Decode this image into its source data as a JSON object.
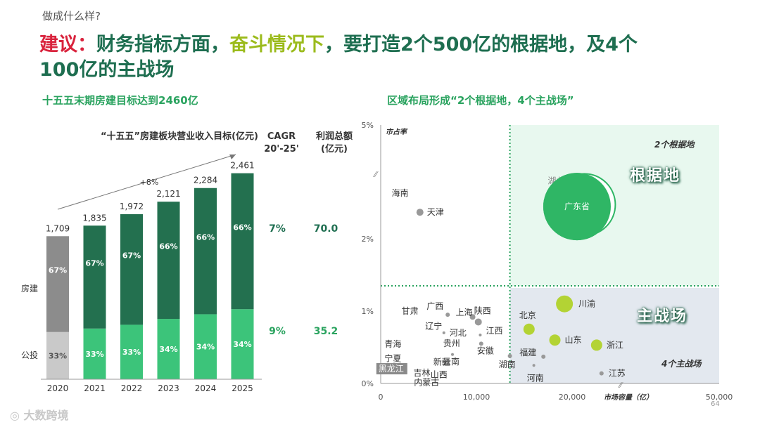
{
  "header": {
    "crumb": "做成什么样?",
    "title_part1": "建议：",
    "title_part2": "财务指标方面，",
    "title_part3": "奋斗情况下",
    "title_part4": "，要打造2个500亿的根据地，及4个",
    "title_line2": "100亿的主战场"
  },
  "left_panel": {
    "subtitle": "十五五末期房建目标达到2460亿"
  },
  "right_panel": {
    "subtitle": "区域布局形成“2个根据地，4个主战场”"
  },
  "colors": {
    "dark_green": "#1e6e50",
    "bar_dark": "#23704f",
    "bar_light": "#3cc47a",
    "gray_dark": "#8c8c8c",
    "gray_light": "#c9c9c9",
    "accent_green": "#2aa35f",
    "zone_green": "#e8f8ef",
    "zone_gray": "#e3e8ef"
  },
  "chart_data": [
    {
      "type": "bar",
      "title": "“十五五”房建板块营业收入目标(亿元)",
      "categories": [
        "2020",
        "2021",
        "2022",
        "2023",
        "2024",
        "2025"
      ],
      "totals": [
        1709,
        1835,
        1972,
        2121,
        2284,
        2461
      ],
      "total_labels": [
        "1,709",
        "1,835",
        "1,972",
        "2,121",
        "2,284",
        "2,461"
      ],
      "series": [
        {
          "name": "房建",
          "values_pct": [
            67,
            67,
            67,
            66,
            66,
            66
          ],
          "labels": [
            "67%",
            "67%",
            "67%",
            "66%",
            "66%",
            "66%"
          ]
        },
        {
          "name": "公投",
          "values_pct": [
            33,
            33,
            33,
            34,
            34,
            34
          ],
          "labels": [
            "33%",
            "33%",
            "33%",
            "34%",
            "34%",
            "34%"
          ]
        }
      ],
      "growth_label": "+8%",
      "table": {
        "headers": [
          "CAGR\n20'-25'",
          "利润总额\n(亿元)"
        ],
        "header_cagr_line1": "CAGR",
        "header_cagr_line2": "20'-25'",
        "header_profit_line1": "利润总额",
        "header_profit_line2": "(亿元)",
        "rows": [
          {
            "series": "房建",
            "cagr": "7%",
            "profit": "70.0"
          },
          {
            "series": "公投",
            "cagr": "9%",
            "profit": "35.2"
          }
        ]
      }
    },
    {
      "type": "scatter",
      "xlabel": "市场容量（亿）",
      "ylabel": "市占率",
      "xlim": [
        0,
        50000
      ],
      "ylim": [
        0,
        5
      ],
      "x_ticks": [
        0,
        10000,
        20000,
        50000
      ],
      "x_tick_labels": [
        "0",
        "10,000",
        "20,000",
        "50,000"
      ],
      "y_ticks": [
        0,
        1,
        2,
        5
      ],
      "y_tick_labels": [
        "0%",
        "1%",
        "2%",
        "5%"
      ],
      "threshold_x": 13500,
      "threshold_y": 1.35,
      "zone_labels": {
        "top": "2个根据地",
        "bottom": "4个主战场"
      },
      "badges": {
        "top": "根据地",
        "bottom": "主战场"
      },
      "points": [
        {
          "name": "广东省",
          "x": 21000,
          "y": 2.85,
          "r": 48,
          "color": "#2fb665",
          "group": "base"
        },
        {
          "name": "湖北",
          "x": 22500,
          "y": 2.9,
          "r": 44,
          "color": "#2fb665",
          "group": "base"
        },
        {
          "name": "川渝",
          "x": 19200,
          "y": 1.1,
          "r": 12,
          "color": "#b3d334",
          "group": "main"
        },
        {
          "name": "北京",
          "x": 15500,
          "y": 0.75,
          "r": 8,
          "color": "#b3d334",
          "group": "main"
        },
        {
          "name": "山东",
          "x": 18200,
          "y": 0.6,
          "r": 8,
          "color": "#b3d334",
          "group": "main"
        },
        {
          "name": "浙江",
          "x": 25000,
          "y": 0.53,
          "r": 8,
          "color": "#b3d334",
          "group": "main"
        },
        {
          "name": "天津",
          "x": 4100,
          "y": 2.7,
          "r": 5,
          "color": "#999999",
          "group": "other"
        },
        {
          "name": "海南",
          "x": 400,
          "y": 3.2,
          "r": 0,
          "color": "#999999",
          "group": "other"
        },
        {
          "name": "甘肃",
          "x": 1000,
          "y": 1.0,
          "r": 0,
          "color": "#999999",
          "group": "other"
        },
        {
          "name": "广西",
          "x": 7000,
          "y": 0.95,
          "r": 3,
          "color": "#999999",
          "group": "other"
        },
        {
          "name": "上海",
          "x": 9600,
          "y": 0.92,
          "r": 4,
          "color": "#999999",
          "group": "other"
        },
        {
          "name": "陕西",
          "x": 10200,
          "y": 0.85,
          "r": 5,
          "color": "#999999",
          "group": "other"
        },
        {
          "name": "辽宁",
          "x": 2000,
          "y": 0.87,
          "r": 0,
          "color": "#999999",
          "group": "other"
        },
        {
          "name": "青海",
          "x": 100,
          "y": 0.7,
          "r": 0,
          "color": "#999999",
          "group": "other"
        },
        {
          "name": "贵州",
          "x": 3000,
          "y": 0.65,
          "r": 0,
          "color": "#999999",
          "group": "other"
        },
        {
          "name": "河北",
          "x": 6600,
          "y": 0.7,
          "r": 2,
          "color": "#999999",
          "group": "other"
        },
        {
          "name": "江西",
          "x": 10400,
          "y": 0.67,
          "r": 2,
          "color": "#999999",
          "group": "other"
        },
        {
          "name": "宁夏",
          "x": 100,
          "y": 0.52,
          "r": 0,
          "color": "#999999",
          "group": "other"
        },
        {
          "name": "新疆",
          "x": 2700,
          "y": 0.47,
          "r": 0,
          "color": "#999999",
          "group": "other"
        },
        {
          "name": "安徽",
          "x": 10500,
          "y": 0.55,
          "r": 3,
          "color": "#999999",
          "group": "other"
        },
        {
          "name": "黑龙江",
          "x": 500,
          "y": 0.32,
          "r": 0,
          "color": "#999999",
          "group": "other"
        },
        {
          "name": "吉林",
          "x": 1800,
          "y": 0.28,
          "r": 0,
          "color": "#999999",
          "group": "other"
        },
        {
          "name": "云南",
          "x": 7500,
          "y": 0.4,
          "r": 2,
          "color": "#999999",
          "group": "other"
        },
        {
          "name": "山西",
          "x": 5200,
          "y": 0.22,
          "r": 0,
          "color": "#999999",
          "group": "other"
        },
        {
          "name": "内蒙古",
          "x": 2000,
          "y": 0.13,
          "r": 0,
          "color": "#999999",
          "group": "other"
        },
        {
          "name": "福建",
          "x": 17000,
          "y": 0.37,
          "r": 3,
          "color": "#999999",
          "group": "other"
        },
        {
          "name": "湖南",
          "x": 13500,
          "y": 0.38,
          "r": 3,
          "color": "#999999",
          "group": "other"
        },
        {
          "name": "河南",
          "x": 16000,
          "y": 0.25,
          "r": 2,
          "color": "#999999",
          "group": "other"
        },
        {
          "name": "江苏",
          "x": 26000,
          "y": 0.14,
          "r": 3,
          "color": "#999999",
          "group": "other"
        }
      ]
    }
  ],
  "footer": {
    "logo": "大数跨境",
    "page": "64"
  }
}
